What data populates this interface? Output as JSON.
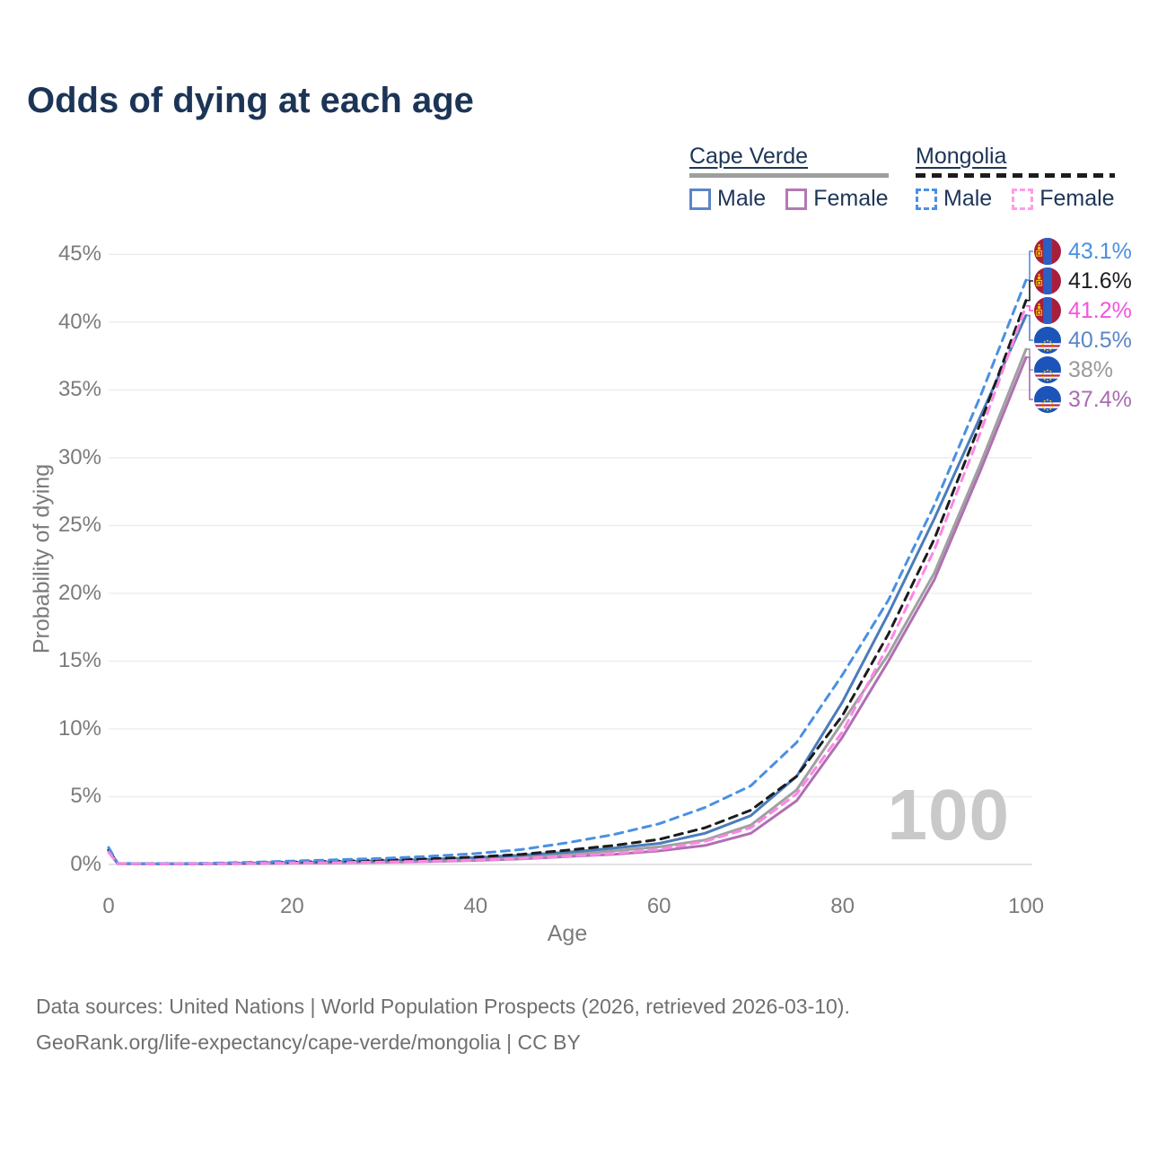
{
  "title": "Odds of dying at each age",
  "legend": {
    "groups": [
      {
        "country": "Cape Verde",
        "line_style": "solid",
        "line_color": "#9e9e9e",
        "items": [
          {
            "label": "Male",
            "color": "#5b86c7",
            "dashed": false
          },
          {
            "label": "Female",
            "color": "#b27ab4",
            "dashed": false
          }
        ]
      },
      {
        "country": "Mongolia",
        "line_style": "dashed",
        "line_color": "#1c1c1c",
        "items": [
          {
            "label": "Male",
            "color": "#4a90e2",
            "dashed": true
          },
          {
            "label": "Female",
            "color": "#ff9ce9",
            "dashed": true
          }
        ]
      }
    ]
  },
  "watermark": "100",
  "footer": {
    "line1": "Data sources: United Nations | World Population Prospects (2026, retrieved 2026-03-10).",
    "line2": "GeoRank.org/life-expectancy/cape-verde/mongolia | CC BY"
  },
  "chart_data": {
    "type": "line",
    "title": "Odds of dying at each age",
    "xlabel": "Age",
    "ylabel": "Probability of dying",
    "xlim": [
      0,
      100
    ],
    "ylim": [
      0,
      45
    ],
    "grid": "horizontal",
    "legend_position": "top-right",
    "y_unit": "%",
    "y_ticks": [
      {
        "value": 0,
        "label": "0%"
      },
      {
        "value": 5,
        "label": "5%"
      },
      {
        "value": 10,
        "label": "10%"
      },
      {
        "value": 15,
        "label": "15%"
      },
      {
        "value": 20,
        "label": "20%"
      },
      {
        "value": 25,
        "label": "25%"
      },
      {
        "value": 30,
        "label": "30%"
      },
      {
        "value": 35,
        "label": "35%"
      },
      {
        "value": 40,
        "label": "40%"
      },
      {
        "value": 45,
        "label": "45%"
      }
    ],
    "x_ticks": [
      {
        "value": 0,
        "label": "0"
      },
      {
        "value": 20,
        "label": "20"
      },
      {
        "value": 40,
        "label": "40"
      },
      {
        "value": 60,
        "label": "60"
      },
      {
        "value": 80,
        "label": "80"
      },
      {
        "value": 100,
        "label": "100"
      }
    ],
    "x": [
      0,
      1,
      5,
      10,
      15,
      20,
      25,
      30,
      35,
      40,
      45,
      50,
      55,
      60,
      65,
      70,
      75,
      80,
      85,
      90,
      95,
      100
    ],
    "series": [
      {
        "name": "Cape Verde Female",
        "country": "Cape Verde",
        "sex": "female",
        "color": "#b06fb2",
        "dashed": false,
        "values": [
          0.9,
          0.05,
          0.03,
          0.04,
          0.06,
          0.09,
          0.12,
          0.16,
          0.22,
          0.3,
          0.42,
          0.58,
          0.75,
          1.0,
          1.4,
          2.3,
          4.7,
          9.4,
          15.0,
          21.0,
          29.0,
          37.4
        ]
      },
      {
        "name": "Cape Verde",
        "country": "Cape Verde",
        "sex": "both",
        "color": "#a0a0a0",
        "dashed": false,
        "values": [
          1.0,
          0.06,
          0.04,
          0.05,
          0.08,
          0.12,
          0.16,
          0.22,
          0.3,
          0.4,
          0.55,
          0.75,
          1.0,
          1.3,
          1.8,
          2.9,
          5.5,
          10.5,
          15.5,
          21.5,
          29.5,
          38.0
        ]
      },
      {
        "name": "Cape Verde Male",
        "country": "Cape Verde",
        "sex": "male",
        "color": "#4a7cba",
        "dashed": false,
        "values": [
          1.1,
          0.07,
          0.05,
          0.06,
          0.1,
          0.15,
          0.2,
          0.28,
          0.38,
          0.5,
          0.68,
          0.9,
          1.2,
          1.55,
          2.3,
          3.6,
          6.5,
          12.0,
          18.5,
          25.5,
          33.0,
          40.5
        ]
      },
      {
        "name": "Mongolia",
        "country": "Mongolia",
        "sex": "both",
        "color": "#1c1c1c",
        "dashed": true,
        "values": [
          1.05,
          0.07,
          0.05,
          0.06,
          0.1,
          0.17,
          0.24,
          0.32,
          0.42,
          0.55,
          0.75,
          1.05,
          1.4,
          1.85,
          2.7,
          4.0,
          6.5,
          11.0,
          17.0,
          24.0,
          32.5,
          41.6
        ]
      },
      {
        "name": "Mongolia Male",
        "country": "Mongolia",
        "sex": "male",
        "color": "#4a90e2",
        "dashed": true,
        "values": [
          1.25,
          0.08,
          0.06,
          0.08,
          0.15,
          0.25,
          0.35,
          0.45,
          0.6,
          0.8,
          1.1,
          1.6,
          2.2,
          3.0,
          4.2,
          5.8,
          9.0,
          14.0,
          19.5,
          26.5,
          34.5,
          43.1
        ]
      },
      {
        "name": "Mongolia Female",
        "country": "Mongolia",
        "sex": "female",
        "color": "#ff85e6",
        "dashed": true,
        "values": [
          0.9,
          0.06,
          0.04,
          0.05,
          0.07,
          0.1,
          0.14,
          0.18,
          0.25,
          0.33,
          0.45,
          0.6,
          0.8,
          1.1,
          1.7,
          2.7,
          5.2,
          9.8,
          16.2,
          23.2,
          31.8,
          41.2
        ]
      }
    ],
    "end_labels": [
      {
        "series": "Mongolia Male",
        "text": "43.1%",
        "color": "#4a90e2",
        "flag": "mongolia"
      },
      {
        "series": "Mongolia",
        "text": "41.6%",
        "color": "#1c1c1c",
        "flag": "mongolia"
      },
      {
        "series": "Mongolia Female",
        "text": "41.2%",
        "color": "#f653dd",
        "flag": "mongolia"
      },
      {
        "series": "Cape Verde Male",
        "text": "40.5%",
        "color": "#5b86c7",
        "flag": "cape-verde"
      },
      {
        "series": "Cape Verde",
        "text": "38%",
        "color": "#9a9a9a",
        "flag": "cape-verde"
      },
      {
        "series": "Cape Verde Female",
        "text": "37.4%",
        "color": "#a96cb0",
        "flag": "cape-verde"
      }
    ],
    "flag_colors": {
      "mongolia": {
        "red": "#a81e3c",
        "blue": "#2a5fc4",
        "yellow": "#f2c500"
      },
      "cape_verde": {
        "blue": "#1d54ba",
        "red": "#d22330",
        "white": "#ffffff",
        "yellow": "#f5d120"
      }
    }
  }
}
